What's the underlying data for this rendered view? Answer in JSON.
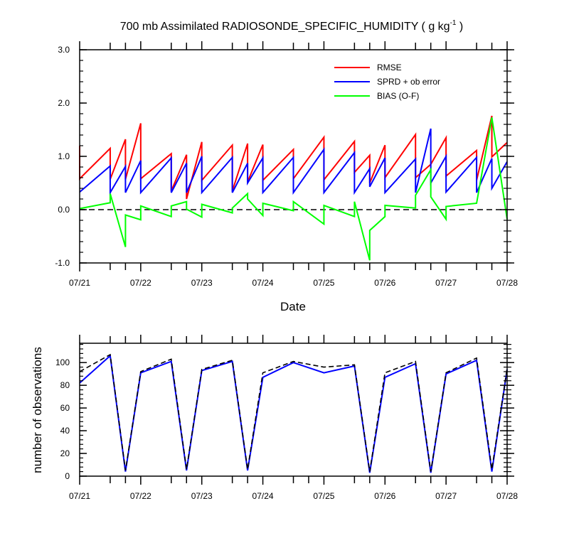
{
  "chart_data": [
    {
      "type": "line",
      "title": "700 mb Assimilated RADIOSONDE_SPECIFIC_HUMIDITY ( g kg",
      "title_superscript": "-1",
      "title_end": " )",
      "xlabel": "Date",
      "ylabel": "",
      "x_tick_labels": [
        "07/21",
        "07/22",
        "07/23",
        "07/24",
        "07/25",
        "07/26",
        "07/27",
        "07/28"
      ],
      "xlim": [
        0,
        7
      ],
      "ylim": [
        -1.0,
        3.0
      ],
      "y_ticks": [
        -1.0,
        0.0,
        1.0,
        2.0,
        3.0
      ],
      "y_tick_labels": [
        "-1.0",
        "0.0",
        "1.0",
        "2.0",
        "3.0"
      ],
      "reference_line": {
        "y": 0.0,
        "style": "dashed",
        "color": "#000000"
      },
      "legend": {
        "placement": "top-right"
      },
      "series": [
        {
          "name": "RMSE",
          "color": "#ff0000",
          "points": [
            [
              0.0,
              1.2
            ],
            [
              0.0,
              0.58
            ],
            [
              0.5,
              1.15
            ],
            [
              0.5,
              0.57
            ],
            [
              0.75,
              1.32
            ],
            [
              0.75,
              0.57
            ],
            [
              1.0,
              1.62
            ],
            [
              1.0,
              0.58
            ],
            [
              1.5,
              1.05
            ],
            [
              1.5,
              0.35
            ],
            [
              1.75,
              1.03
            ],
            [
              1.75,
              0.2
            ],
            [
              2.0,
              1.27
            ],
            [
              2.0,
              0.55
            ],
            [
              2.5,
              1.21
            ],
            [
              2.5,
              0.35
            ],
            [
              2.75,
              1.24
            ],
            [
              2.75,
              0.52
            ],
            [
              3.0,
              1.22
            ],
            [
              3.0,
              0.55
            ],
            [
              3.5,
              1.13
            ],
            [
              3.5,
              0.58
            ],
            [
              4.0,
              1.36
            ],
            [
              4.0,
              0.56
            ],
            [
              4.5,
              1.28
            ],
            [
              4.5,
              0.7
            ],
            [
              4.75,
              1.02
            ],
            [
              4.75,
              0.5
            ],
            [
              5.0,
              1.21
            ],
            [
              5.0,
              0.6
            ],
            [
              5.5,
              1.41
            ],
            [
              5.5,
              0.6
            ],
            [
              5.75,
              0.85
            ],
            [
              6.0,
              1.35
            ],
            [
              6.0,
              0.63
            ],
            [
              6.5,
              1.11
            ],
            [
              6.5,
              0.55
            ],
            [
              6.75,
              1.76
            ],
            [
              6.75,
              0.99
            ],
            [
              7.0,
              1.26
            ]
          ]
        },
        {
          "name": "SPRD + ob error",
          "color": "#0000ff",
          "points": [
            [
              0.0,
              0.33
            ],
            [
              0.5,
              0.82
            ],
            [
              0.5,
              0.32
            ],
            [
              0.75,
              0.81
            ],
            [
              0.75,
              0.32
            ],
            [
              1.0,
              0.92
            ],
            [
              1.0,
              0.32
            ],
            [
              1.5,
              0.97
            ],
            [
              1.5,
              0.32
            ],
            [
              1.75,
              0.87
            ],
            [
              1.75,
              0.32
            ],
            [
              2.0,
              1.0
            ],
            [
              2.0,
              0.32
            ],
            [
              2.5,
              0.98
            ],
            [
              2.5,
              0.32
            ],
            [
              2.75,
              0.87
            ],
            [
              2.75,
              0.5
            ],
            [
              3.0,
              0.97
            ],
            [
              3.0,
              0.32
            ],
            [
              3.5,
              0.98
            ],
            [
              3.5,
              0.32
            ],
            [
              4.0,
              1.13
            ],
            [
              4.0,
              0.32
            ],
            [
              4.5,
              1.07
            ],
            [
              4.5,
              0.32
            ],
            [
              4.75,
              0.77
            ],
            [
              4.75,
              0.43
            ],
            [
              5.0,
              0.97
            ],
            [
              5.0,
              0.32
            ],
            [
              5.5,
              0.95
            ],
            [
              5.5,
              0.32
            ],
            [
              5.75,
              1.52
            ],
            [
              5.75,
              0.5
            ],
            [
              6.0,
              1.0
            ],
            [
              6.0,
              0.33
            ],
            [
              6.5,
              0.98
            ],
            [
              6.5,
              0.32
            ],
            [
              6.75,
              0.96
            ],
            [
              6.75,
              0.4
            ],
            [
              7.0,
              0.9
            ]
          ]
        },
        {
          "name": "BIAS (O-F)",
          "color": "#00ff00",
          "points": [
            [
              0.0,
              0.02
            ],
            [
              0.5,
              0.13
            ],
            [
              0.5,
              0.3
            ],
            [
              0.75,
              -0.7
            ],
            [
              0.75,
              -0.1
            ],
            [
              1.0,
              -0.19
            ],
            [
              1.0,
              0.07
            ],
            [
              1.5,
              -0.13
            ],
            [
              1.5,
              0.07
            ],
            [
              1.75,
              0.15
            ],
            [
              1.75,
              0.01
            ],
            [
              2.0,
              -0.14
            ],
            [
              2.0,
              0.1
            ],
            [
              2.5,
              -0.06
            ],
            [
              2.5,
              0.03
            ],
            [
              2.75,
              0.3
            ],
            [
              2.75,
              0.2
            ],
            [
              3.0,
              -0.11
            ],
            [
              3.0,
              0.12
            ],
            [
              3.5,
              -0.02
            ],
            [
              3.5,
              0.15
            ],
            [
              4.0,
              -0.27
            ],
            [
              4.0,
              0.08
            ],
            [
              4.5,
              -0.13
            ],
            [
              4.5,
              0.15
            ],
            [
              4.75,
              -0.95
            ],
            [
              4.75,
              -0.39
            ],
            [
              5.0,
              -0.13
            ],
            [
              5.0,
              0.08
            ],
            [
              5.5,
              0.03
            ],
            [
              5.5,
              0.27
            ],
            [
              5.75,
              0.75
            ],
            [
              5.75,
              0.24
            ],
            [
              6.0,
              -0.18
            ],
            [
              6.0,
              0.06
            ],
            [
              6.5,
              0.12
            ],
            [
              6.75,
              1.73
            ],
            [
              7.0,
              -0.18
            ]
          ]
        }
      ]
    },
    {
      "type": "line",
      "title": "",
      "xlabel": "",
      "ylabel": "number of observations",
      "x_tick_labels": [
        "07/21",
        "07/22",
        "07/23",
        "07/24",
        "07/25",
        "07/26",
        "07/27",
        "07/28"
      ],
      "xlim": [
        0,
        7
      ],
      "ylim": [
        0,
        117
      ],
      "y_ticks": [
        0,
        20,
        40,
        60,
        80,
        100
      ],
      "y_tick_labels": [
        "0",
        "20",
        "40",
        "60",
        "80",
        "100"
      ],
      "series": [
        {
          "color": "#0000ff",
          "style": "solid",
          "x": [
            0.0,
            0.5,
            0.75,
            1.0,
            1.5,
            1.75,
            2.0,
            2.5,
            2.75,
            3.0,
            3.5,
            4.0,
            4.5,
            4.75,
            5.0,
            5.5,
            5.75,
            6.0,
            6.5,
            6.75,
            7.0
          ],
          "values": [
            82,
            106,
            4,
            91,
            101,
            5,
            93,
            101,
            5,
            87,
            100,
            91,
            97,
            3,
            87,
            99,
            3,
            90,
            102,
            4,
            94
          ]
        },
        {
          "color": "#000000",
          "style": "dashed",
          "x": [
            0.0,
            0.5,
            0.75,
            1.0,
            1.5,
            1.75,
            2.0,
            2.5,
            2.75,
            3.0,
            3.5,
            4.0,
            4.5,
            4.75,
            5.0,
            5.5,
            5.75,
            6.0,
            6.5,
            6.75,
            7.0
          ],
          "values": [
            92,
            107,
            5,
            92,
            103,
            6,
            94,
            102,
            6,
            91,
            101,
            96,
            98,
            4,
            91,
            101,
            4,
            91,
            104,
            6,
            95
          ]
        }
      ]
    }
  ]
}
